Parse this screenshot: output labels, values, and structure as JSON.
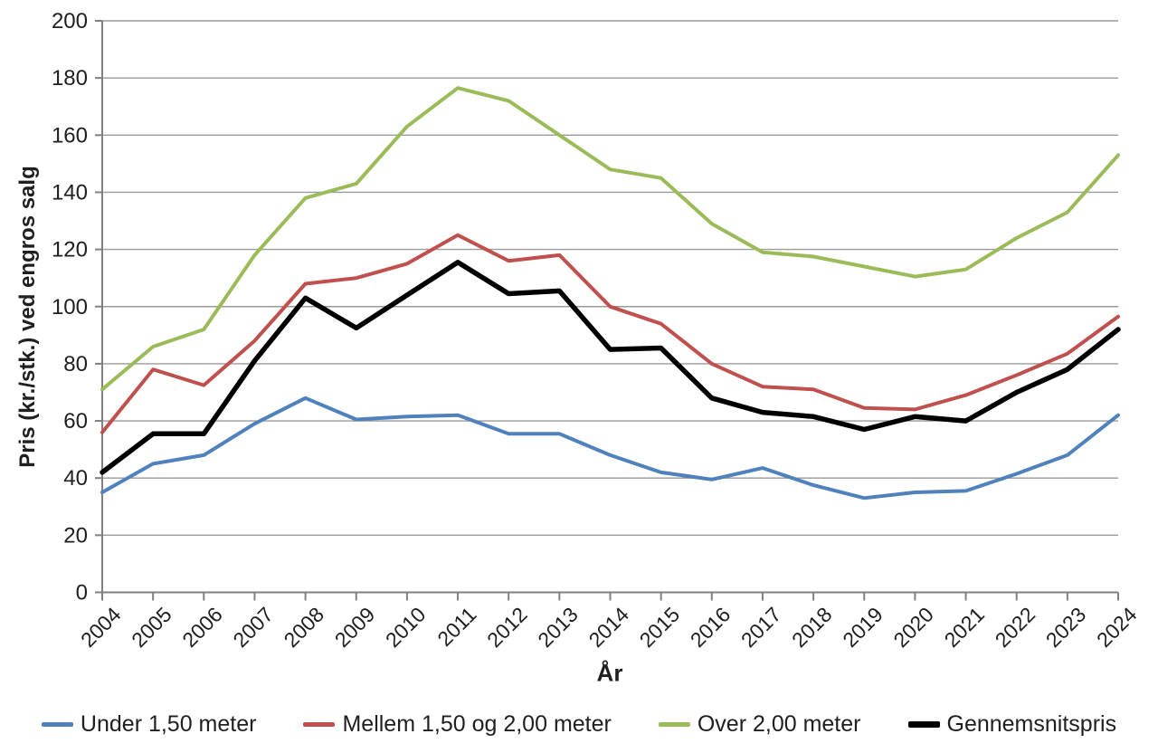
{
  "chart_data": {
    "type": "line",
    "xlabel": "År",
    "ylabel": "Pris (kr./stk.) ved engros salg",
    "ylim": [
      0,
      200
    ],
    "ytick_step": 20,
    "grid": true,
    "legend_position": "bottom",
    "x": [
      2004,
      2005,
      2006,
      2007,
      2008,
      2009,
      2010,
      2011,
      2012,
      2013,
      2014,
      2015,
      2016,
      2017,
      2018,
      2019,
      2020,
      2021,
      2022,
      2023,
      2024
    ],
    "series": [
      {
        "name": "Under 1,50 meter",
        "color": "#4F81BD",
        "line_width": 4,
        "values": [
          35,
          45,
          48,
          59,
          68,
          60.5,
          61.5,
          62,
          55.5,
          55.5,
          48,
          42,
          39.5,
          43.5,
          37.5,
          33,
          35,
          35.5,
          41.5,
          48,
          62
        ]
      },
      {
        "name": "Mellem 1,50 og 2,00 meter",
        "color": "#C0504D",
        "line_width": 4,
        "values": [
          56,
          78,
          72.5,
          88,
          108,
          110,
          115,
          125,
          116,
          118,
          100,
          94,
          80,
          72,
          71,
          64.5,
          64,
          69,
          76,
          83.5,
          96.5
        ]
      },
      {
        "name": "Over 2,00 meter",
        "color": "#9BBB59",
        "line_width": 4,
        "values": [
          71,
          86,
          92,
          118,
          138,
          143,
          163,
          176.5,
          172,
          160,
          148,
          145,
          129,
          119,
          117.5,
          114,
          110.5,
          113,
          124,
          133,
          153
        ]
      },
      {
        "name": "Gennemsnitspris",
        "color": "#000000",
        "line_width": 5.5,
        "values": [
          42,
          55.5,
          55.5,
          81,
          103,
          92.5,
          104,
          115.5,
          104.5,
          105.5,
          85,
          85.5,
          68,
          63,
          61.5,
          57,
          61.5,
          60,
          70,
          78,
          92
        ]
      }
    ],
    "colors": {
      "grid": "#9a9a9a",
      "axis": "#808080",
      "text": "#1f1f1f"
    }
  }
}
